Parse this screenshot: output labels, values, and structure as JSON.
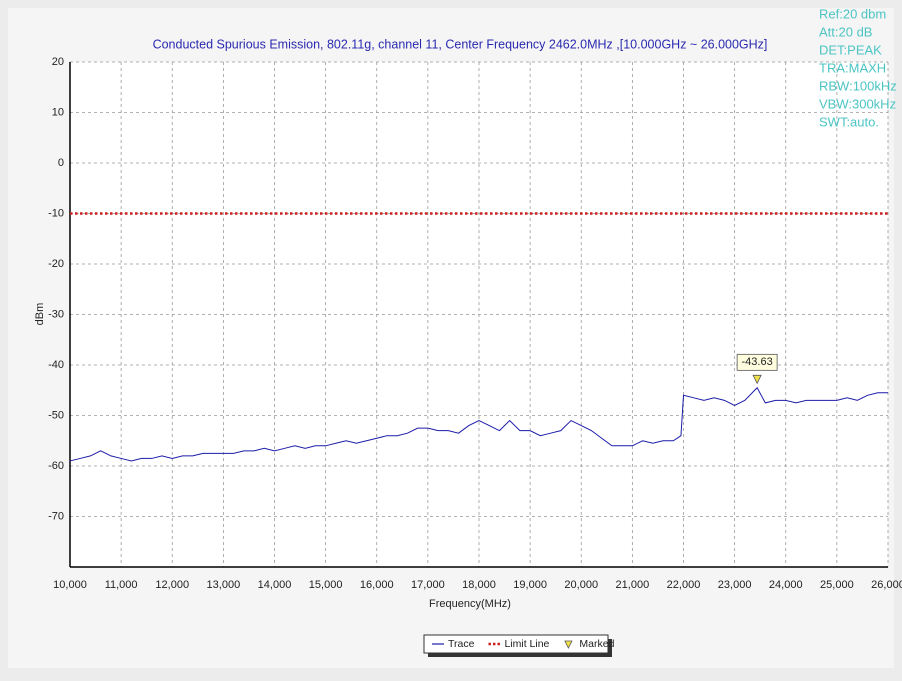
{
  "chart_data": {
    "type": "line",
    "title": "Conducted Spurious Emission, 802.11g, channel 11, Center Frequency 2462.0MHz ,[10.000GHz ~ 26.000GHz]",
    "x_label": "Frequency(MHz)",
    "y_label": "dBm",
    "info": [
      "Ref:20 dbm",
      "Att:20 dB",
      "DET:PEAK",
      "TRA:MAXH",
      "RBW:100kHz",
      "VBW:300kHz",
      "SWT:auto."
    ],
    "xlim": [
      10000,
      26000
    ],
    "ylim": [
      -80,
      20
    ],
    "xticks": [
      {
        "value": 10000,
        "label": "10,000"
      },
      {
        "value": 11000,
        "label": "11,000"
      },
      {
        "value": 12000,
        "label": "12,000"
      },
      {
        "value": 13000,
        "label": "13,000"
      },
      {
        "value": 14000,
        "label": "14,000"
      },
      {
        "value": 15000,
        "label": "15,000"
      },
      {
        "value": 16000,
        "label": "16,000"
      },
      {
        "value": 17000,
        "label": "17,000"
      },
      {
        "value": 18000,
        "label": "18,000"
      },
      {
        "value": 19000,
        "label": "19,000"
      },
      {
        "value": 20000,
        "label": "20,000"
      },
      {
        "value": 21000,
        "label": "21,000"
      },
      {
        "value": 22000,
        "label": "22,000"
      },
      {
        "value": 23000,
        "label": "23,000"
      },
      {
        "value": 24000,
        "label": "24,000"
      },
      {
        "value": 25000,
        "label": "25,000"
      },
      {
        "value": 26000,
        "label": "26,000"
      }
    ],
    "yticks": [
      20,
      10,
      0,
      -10,
      -20,
      -30,
      -40,
      -50,
      -60,
      -70
    ],
    "grid": true,
    "series": [
      {
        "name": "Trace",
        "color": "#1c1ca8",
        "style": "solid",
        "x": [
          10000,
          10200,
          10400,
          10600,
          10800,
          11000,
          11200,
          11400,
          11600,
          11800,
          12000,
          12200,
          12400,
          12600,
          12800,
          13000,
          13200,
          13400,
          13600,
          13800,
          14000,
          14200,
          14400,
          14600,
          14800,
          15000,
          15200,
          15400,
          15600,
          15800,
          16000,
          16200,
          16400,
          16600,
          16800,
          17000,
          17200,
          17400,
          17600,
          17800,
          18000,
          18200,
          18400,
          18600,
          18800,
          19000,
          19200,
          19400,
          19600,
          19800,
          20000,
          20200,
          20400,
          20600,
          20800,
          21000,
          21200,
          21400,
          21600,
          21800,
          21950,
          22000,
          22200,
          22400,
          22600,
          22800,
          23000,
          23200,
          23440,
          23600,
          23800,
          24000,
          24200,
          24400,
          24600,
          24800,
          25000,
          25200,
          25400,
          25600,
          25800,
          26000
        ],
        "values": [
          -59,
          -58.5,
          -58,
          -57,
          -58,
          -58.5,
          -59,
          -58.5,
          -58.5,
          -58,
          -58.5,
          -58,
          -58,
          -57.5,
          -57.5,
          -57.5,
          -57.5,
          -57,
          -57,
          -56.5,
          -57,
          -56.5,
          -56,
          -56.5,
          -56,
          -56,
          -55.5,
          -55,
          -55.5,
          -55,
          -54.5,
          -54,
          -54,
          -53.5,
          -52.5,
          -52.5,
          -53,
          -53,
          -53.5,
          -52,
          -51,
          -52,
          -53,
          -51,
          -53,
          -53,
          -54,
          -53.5,
          -53,
          -51,
          -52,
          -53,
          -54.5,
          -56,
          -56,
          -56,
          -55,
          -55.5,
          -55,
          -55,
          -54,
          -46,
          -46.5,
          -47,
          -46.5,
          -47,
          -48,
          -47,
          -44.5,
          -47.5,
          -47,
          -47,
          -47.5,
          -47,
          -47,
          -47,
          -47,
          -46.5,
          -47,
          -46,
          -45.5,
          -45.5
        ]
      },
      {
        "name": "Limit Line",
        "color": "#cc2020",
        "style": "dotted",
        "x": [
          10000,
          26000
        ],
        "values": [
          -10,
          -10
        ]
      },
      {
        "name": "Marked",
        "color": "#f2e24a",
        "style": "triangle",
        "x": [
          23440
        ],
        "values": [
          -43.63
        ]
      }
    ]
  }
}
